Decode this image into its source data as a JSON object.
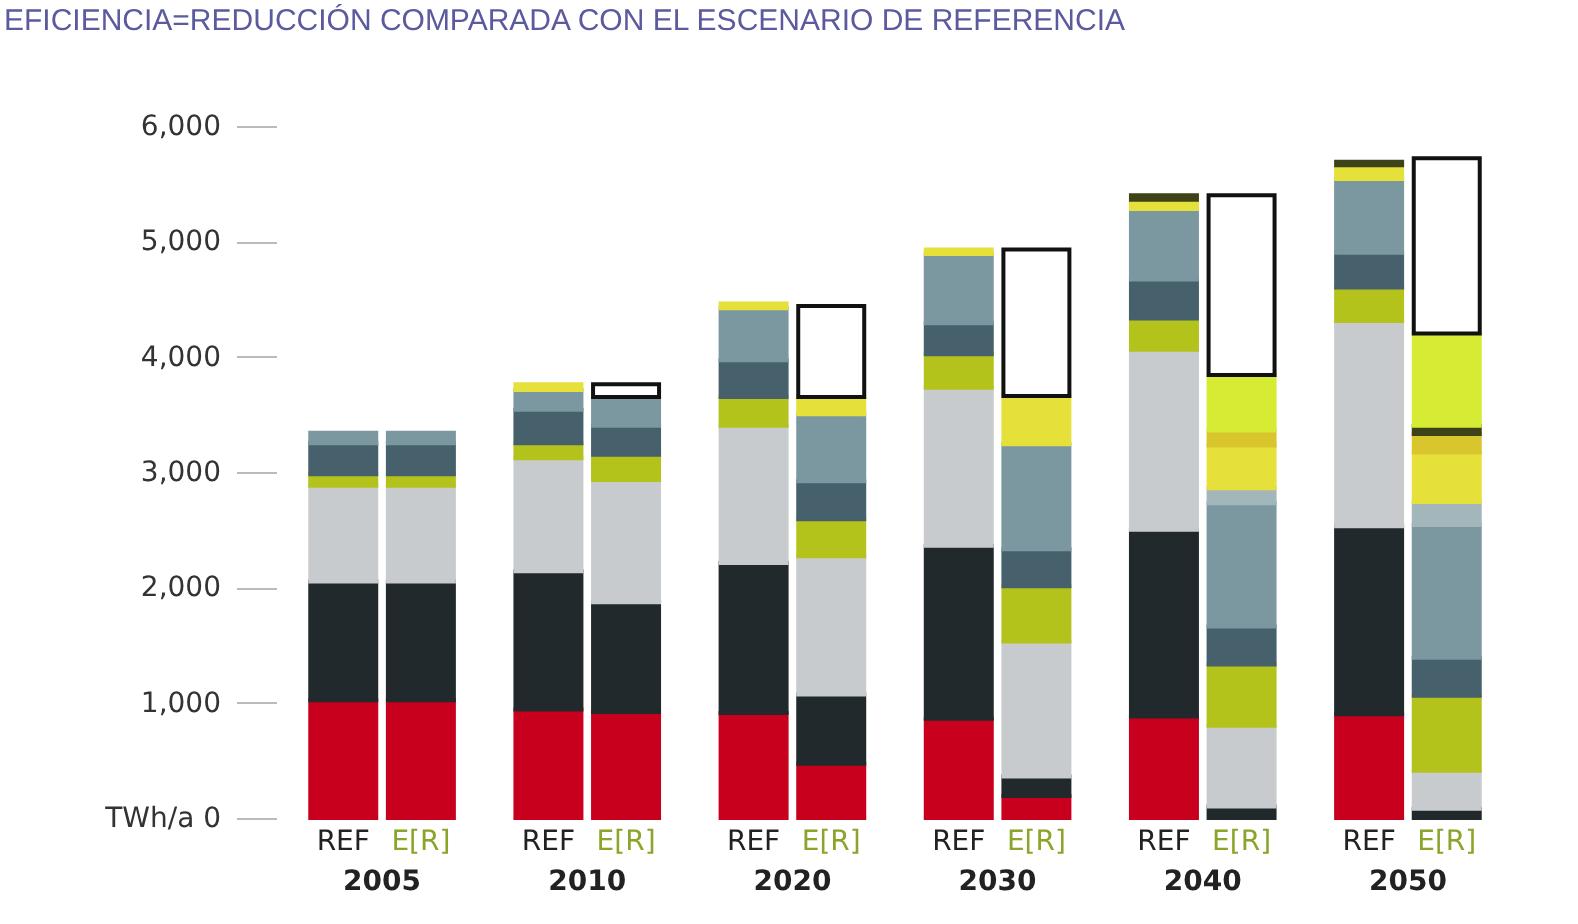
{
  "chart_data": {
    "type": "bar",
    "stacked": true,
    "title": "EFICIENCIA=REDUCCIÓN COMPARADA CON EL ESCENARIO DE REFERENCIA",
    "categories": [
      "REF",
      "E[R]",
      "REF",
      "E[R]",
      "REF",
      "E[R]",
      "REF",
      "E[R]",
      "REF",
      "E[R]",
      "REF",
      "E[R]"
    ],
    "annotations": [
      "2005",
      "2010",
      "2020",
      "2030",
      "2040",
      "2050"
    ],
    "ylim": [
      0,
      6000
    ],
    "yticks": [
      {
        "value": 0,
        "label": "TWh/a 0"
      },
      {
        "value": 1000,
        "label": "1,000"
      },
      {
        "value": 2000,
        "label": "2,000"
      },
      {
        "value": 3000,
        "label": "3,000"
      },
      {
        "value": 4000,
        "label": "4,000"
      },
      {
        "value": 5000,
        "label": "5,000"
      },
      {
        "value": 6000,
        "label": "6,000"
      }
    ],
    "grid": false,
    "legend": false,
    "series": [
      {
        "color": "#c8001e",
        "values": [
          1020,
          1020,
          940,
          920,
          910,
          470,
          860,
          190,
          880,
          null,
          900,
          null
        ]
      },
      {
        "color": "#22292c",
        "values": [
          1030,
          1030,
          1200,
          950,
          1300,
          600,
          1500,
          170,
          1620,
          100,
          1630,
          80
        ]
      },
      {
        "color": "#c8cbce",
        "values": [
          830,
          830,
          980,
          1060,
          1190,
          1200,
          1370,
          1170,
          1560,
          700,
          1780,
          330
        ]
      },
      {
        "color": "#b4c31c",
        "values": [
          100,
          100,
          130,
          220,
          250,
          320,
          290,
          480,
          270,
          530,
          290,
          650
        ]
      },
      {
        "color": "#46606c",
        "values": [
          270,
          270,
          290,
          250,
          320,
          330,
          270,
          320,
          340,
          330,
          300,
          330
        ]
      },
      {
        "color": "#7b97a0",
        "values": [
          90,
          90,
          170,
          250,
          450,
          580,
          600,
          910,
          610,
          1070,
          640,
          1150
        ]
      },
      {
        "color": "#a3b6ba",
        "values": [
          null,
          null,
          null,
          null,
          null,
          null,
          null,
          null,
          null,
          130,
          null,
          200
        ]
      },
      {
        "color": "#e6e03a",
        "values": [
          null,
          null,
          50,
          null,
          40,
          150,
          40,
          420,
          80,
          370,
          120,
          430
        ]
      },
      {
        "color": "#d9c52c",
        "values": [
          null,
          null,
          null,
          null,
          null,
          null,
          null,
          null,
          null,
          130,
          null,
          160
        ]
      },
      {
        "color": "#3d4218",
        "values": [
          null,
          null,
          null,
          null,
          null,
          null,
          null,
          null,
          40,
          null,
          30,
          70
        ]
      },
      {
        "color": "#d6eb33",
        "values": [
          null,
          null,
          null,
          null,
          null,
          null,
          null,
          null,
          null,
          480,
          null,
          800
        ]
      },
      {
        "color": "#ffffff",
        "values": [
          null,
          null,
          null,
          110,
          null,
          790,
          null,
          1270,
          null,
          1560,
          null,
          1520
        ]
      }
    ]
  }
}
